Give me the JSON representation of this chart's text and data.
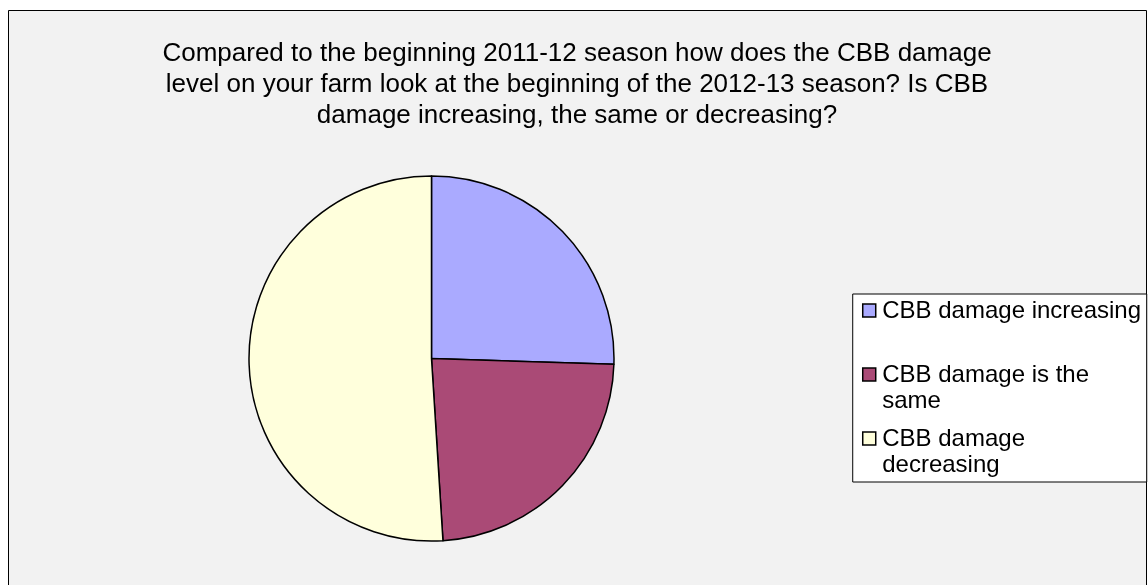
{
  "chart_data": {
    "type": "pie",
    "title": "Compared to the beginning 2011-12 season how does the CBB damage level on your farm look at the beginning of the 2012-13 season? Is CBB damage increasing, the same or decreasing?",
    "categories": [
      "CBB damage increasing",
      "CBB damage is the same",
      "CBB damage decreasing"
    ],
    "values": [
      25.5,
      23.5,
      51
    ],
    "colors": [
      "#aaaaff",
      "#aa4a76",
      "#ffffdc"
    ],
    "legend": "right"
  }
}
